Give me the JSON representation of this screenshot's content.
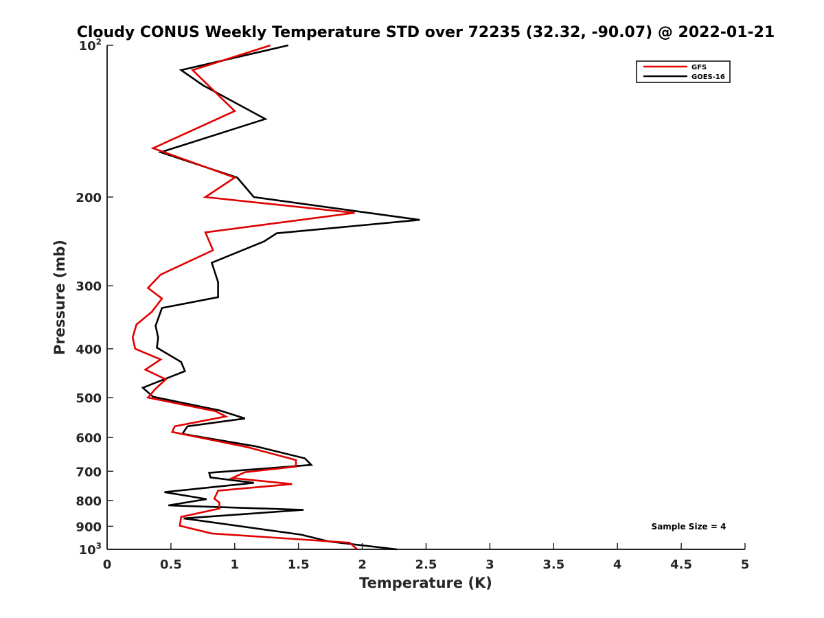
{
  "chart_data": {
    "type": "line",
    "title": "Cloudy CONUS Weekly Temperature STD over 72235 (32.32, -90.07) @ 2022-01-21",
    "xlabel": "Temperature (K)",
    "ylabel": "Pressure (mb)",
    "xlim": [
      0,
      5
    ],
    "ylim": [
      100,
      1000
    ],
    "y_scale": "log",
    "y_reversed": true,
    "grid": false,
    "x_ticks": [
      0,
      0.5,
      1,
      1.5,
      2,
      2.5,
      3,
      3.5,
      4,
      4.5,
      5
    ],
    "x_tick_labels": [
      "0",
      "0.5",
      "1",
      "1.5",
      "2",
      "2.5",
      "3",
      "3.5",
      "4",
      "4.5",
      "5"
    ],
    "y_ticks": [
      {
        "value": 100,
        "base": "10",
        "exp": "2"
      },
      {
        "value": 200,
        "label": "200"
      },
      {
        "value": 300,
        "label": "300"
      },
      {
        "value": 400,
        "label": "400"
      },
      {
        "value": 500,
        "label": "500"
      },
      {
        "value": 600,
        "label": "600"
      },
      {
        "value": 700,
        "label": "700"
      },
      {
        "value": 800,
        "label": "800"
      },
      {
        "value": 900,
        "label": "900"
      },
      {
        "value": 1000,
        "base": "10",
        "exp": "3"
      }
    ],
    "legend_position": "top-right",
    "annotation": "Sample Size = 4",
    "series": [
      {
        "name": "GFS",
        "color": "#e00000",
        "points": [
          [
            1.28,
            100
          ],
          [
            0.67,
            112
          ],
          [
            1.0,
            135
          ],
          [
            0.36,
            160
          ],
          [
            1.0,
            183
          ],
          [
            0.77,
            200
          ],
          [
            1.94,
            215
          ],
          [
            0.77,
            235
          ],
          [
            0.83,
            255
          ],
          [
            0.42,
            285
          ],
          [
            0.32,
            303
          ],
          [
            0.43,
            318
          ],
          [
            0.35,
            338
          ],
          [
            0.23,
            358
          ],
          [
            0.2,
            380
          ],
          [
            0.22,
            400
          ],
          [
            0.42,
            420
          ],
          [
            0.3,
            440
          ],
          [
            0.46,
            460
          ],
          [
            0.38,
            480
          ],
          [
            0.32,
            500
          ],
          [
            0.85,
            532
          ],
          [
            0.93,
            545
          ],
          [
            0.53,
            570
          ],
          [
            0.51,
            585
          ],
          [
            1.1,
            627
          ],
          [
            1.48,
            665
          ],
          [
            1.48,
            685
          ],
          [
            1.08,
            703
          ],
          [
            0.98,
            722
          ],
          [
            1.45,
            742
          ],
          [
            0.87,
            765
          ],
          [
            0.84,
            793
          ],
          [
            0.88,
            808
          ],
          [
            0.88,
            830
          ],
          [
            0.58,
            862
          ],
          [
            0.57,
            898
          ],
          [
            0.82,
            930
          ],
          [
            1.9,
            970
          ],
          [
            1.96,
            1000
          ]
        ]
      },
      {
        "name": "GOES-16",
        "color": "#000000",
        "points": [
          [
            1.42,
            100
          ],
          [
            0.58,
            112
          ],
          [
            0.75,
            120
          ],
          [
            1.24,
            140
          ],
          [
            0.42,
            163
          ],
          [
            1.02,
            183
          ],
          [
            1.15,
            200
          ],
          [
            2.45,
            222
          ],
          [
            1.33,
            236
          ],
          [
            1.23,
            245
          ],
          [
            0.82,
            270
          ],
          [
            0.87,
            295
          ],
          [
            0.87,
            316
          ],
          [
            0.43,
            332
          ],
          [
            0.38,
            360
          ],
          [
            0.4,
            380
          ],
          [
            0.39,
            398
          ],
          [
            0.58,
            425
          ],
          [
            0.61,
            443
          ],
          [
            0.39,
            466
          ],
          [
            0.28,
            478
          ],
          [
            0.36,
            498
          ],
          [
            0.88,
            530
          ],
          [
            1.08,
            550
          ],
          [
            0.63,
            570
          ],
          [
            0.59,
            590
          ],
          [
            1.17,
            625
          ],
          [
            1.55,
            660
          ],
          [
            1.6,
            680
          ],
          [
            0.8,
            705
          ],
          [
            0.81,
            720
          ],
          [
            1.15,
            738
          ],
          [
            0.45,
            770
          ],
          [
            0.78,
            795
          ],
          [
            0.48,
            818
          ],
          [
            1.54,
            835
          ],
          [
            0.6,
            868
          ],
          [
            1.52,
            935
          ],
          [
            1.74,
            965
          ],
          [
            2.27,
            1000
          ]
        ]
      }
    ]
  }
}
